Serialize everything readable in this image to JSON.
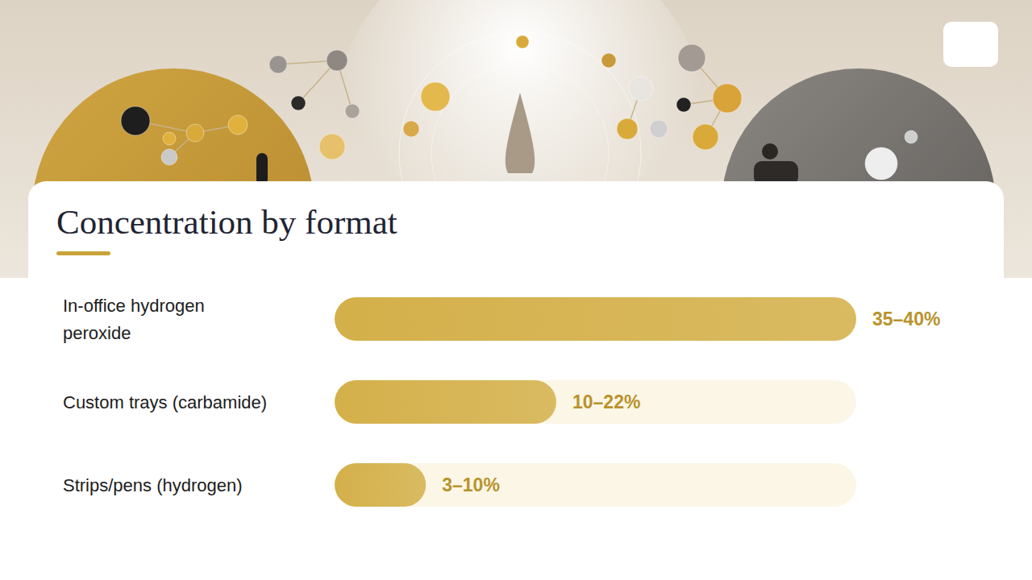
{
  "chart_data": {
    "type": "bar",
    "title": "Concentration by format",
    "orientation": "horizontal",
    "categories": [
      "In-office hydrogen peroxide",
      "Custom trays (carbamide)",
      "Strips/pens (hydrogen)"
    ],
    "values": [
      40,
      17,
      7
    ],
    "value_labels": [
      "35–40%",
      "10–22%",
      "3–10%"
    ],
    "color": "#d4b04a",
    "xlim": [
      0,
      40
    ],
    "data_labels": true,
    "tick_labels": "y",
    "grid": false
  }
}
